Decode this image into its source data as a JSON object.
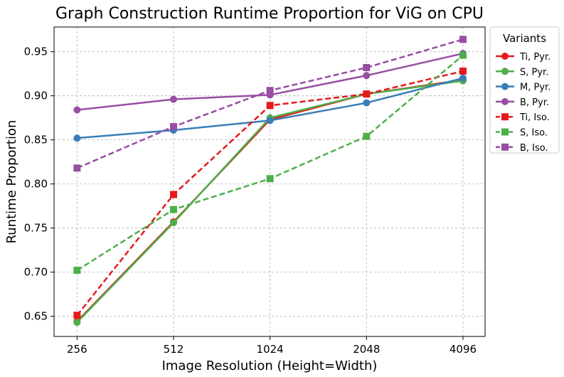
{
  "chart_data": {
    "type": "line",
    "title": "Graph Construction Runtime Proportion for ViG on CPU",
    "xlabel": "Image Resolution (Height=Width)",
    "ylabel": "Runtime Proportion",
    "x_scale": "log2",
    "categories": [
      "256",
      "512",
      "1024",
      "2048",
      "4096"
    ],
    "x": [
      256,
      512,
      1024,
      2048,
      4096
    ],
    "xlim": [
      217,
      4800
    ],
    "ylim": [
      0.627,
      0.978
    ],
    "yticks": [
      0.65,
      0.7,
      0.75,
      0.8,
      0.85,
      0.9,
      0.95
    ],
    "ytick_labels": [
      "0.65",
      "0.70",
      "0.75",
      "0.80",
      "0.85",
      "0.90",
      "0.95"
    ],
    "grid": true,
    "legend_title": "Variants",
    "legend_position": "outside-right",
    "series": [
      {
        "name": "Ti, Pyr.",
        "color": "#e41a1c",
        "linestyle": "solid",
        "marker": "circle",
        "values": [
          0.644,
          0.757,
          0.873,
          0.902,
          0.918
        ]
      },
      {
        "name": "S, Pyr.",
        "color": "#4daf4a",
        "linestyle": "solid",
        "marker": "circle",
        "values": [
          0.643,
          0.756,
          0.875,
          0.902,
          0.917
        ]
      },
      {
        "name": "M, Pyr.",
        "color": "#377eb8",
        "linestyle": "solid",
        "marker": "circle",
        "values": [
          0.852,
          0.861,
          0.872,
          0.892,
          0.92
        ]
      },
      {
        "name": "B, Pyr.",
        "color": "#984ea3",
        "linestyle": "solid",
        "marker": "circle",
        "values": [
          0.884,
          0.896,
          0.901,
          0.923,
          0.948
        ]
      },
      {
        "name": "Ti, Iso.",
        "color": "#e41a1c",
        "linestyle": "dashed",
        "marker": "square",
        "values": [
          0.651,
          0.788,
          0.889,
          0.902,
          0.928
        ]
      },
      {
        "name": "S, Iso.",
        "color": "#4daf4a",
        "linestyle": "dashed",
        "marker": "square",
        "values": [
          0.702,
          0.771,
          0.806,
          0.854,
          0.946
        ]
      },
      {
        "name": "B, Iso.",
        "color": "#984ea3",
        "linestyle": "dashed",
        "marker": "square",
        "values": [
          0.818,
          0.865,
          0.906,
          0.932,
          0.964
        ]
      }
    ]
  }
}
